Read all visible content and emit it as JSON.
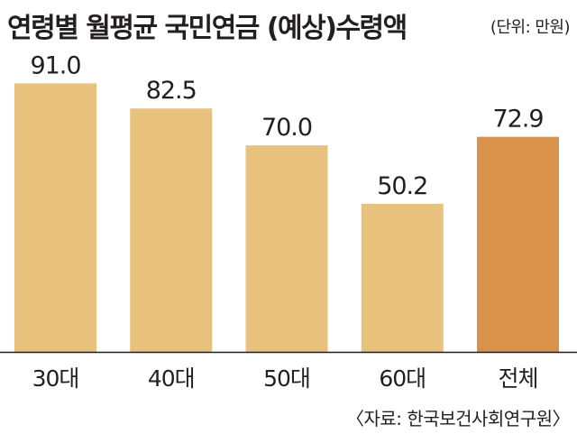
{
  "header": {
    "title": "연령별 월평균 국민연금 (예상)수령액",
    "unit": "(단위: 만원)"
  },
  "footer": {
    "source": "〈자료: 한국보건사회연구원〉"
  },
  "colors": {
    "bar": "#e8c27c",
    "highlight": "#d9924b",
    "text": "#231f20",
    "axis": "#231f20"
  },
  "chart_data": {
    "type": "bar",
    "title": "연령별 월평균 국민연금 (예상)수령액",
    "unit": "(단위: 만원)",
    "categories": [
      "30대",
      "40대",
      "50대",
      "60대",
      "전체"
    ],
    "values": [
      91.0,
      82.5,
      70.0,
      50.2,
      72.9
    ],
    "value_labels": [
      "91.0",
      "82.5",
      "70.0",
      "50.2",
      "72.9"
    ],
    "highlight_category": "전체",
    "ylim": [
      0,
      100
    ],
    "grid": false,
    "legend": "none"
  }
}
